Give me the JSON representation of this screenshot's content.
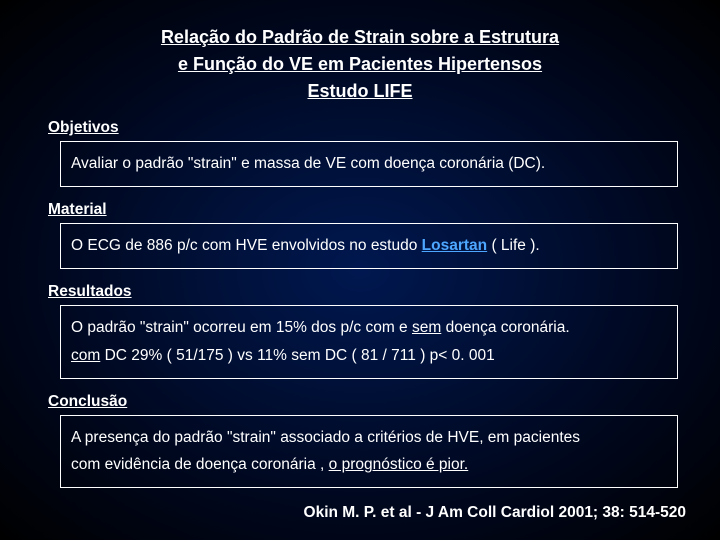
{
  "title": {
    "line1": "Relação do Padrão de Strain sobre a Estrutura",
    "line2": "e Função do VE em Pacientes Hipertensos",
    "line3": "Estudo LIFE"
  },
  "objetivos": {
    "heading": "Objetivos",
    "text": "Avaliar o padrão \"strain\" e massa de VE com doença coronária (DC)."
  },
  "material": {
    "heading": "Material",
    "prefix": "O ECG de 886 p/c com HVE envolvidos no estudo ",
    "link": "Losartan",
    "suffix": " ( Life )."
  },
  "resultados": {
    "heading": "Resultados",
    "line1_a": "O padrão \"strain\" ocorreu em 15% dos p/c com e ",
    "line1_u": "sem",
    "line1_b": " doença coronária.",
    "line2_u": "com",
    "line2_rest": " DC 29% ( 51/175 ) vs 11% sem DC ( 81 / 711 ) p< 0. 001"
  },
  "conclusao": {
    "heading": "Conclusão",
    "line1": "A presença do padrão \"strain\" associado a critérios de HVE, em pacientes",
    "line2_a": "com evidência de doença coronária , ",
    "line2_b": "o prognóstico é pior."
  },
  "citation": "Okin M. P. et al - J Am Coll Cardiol 2001; 38: 514-520"
}
